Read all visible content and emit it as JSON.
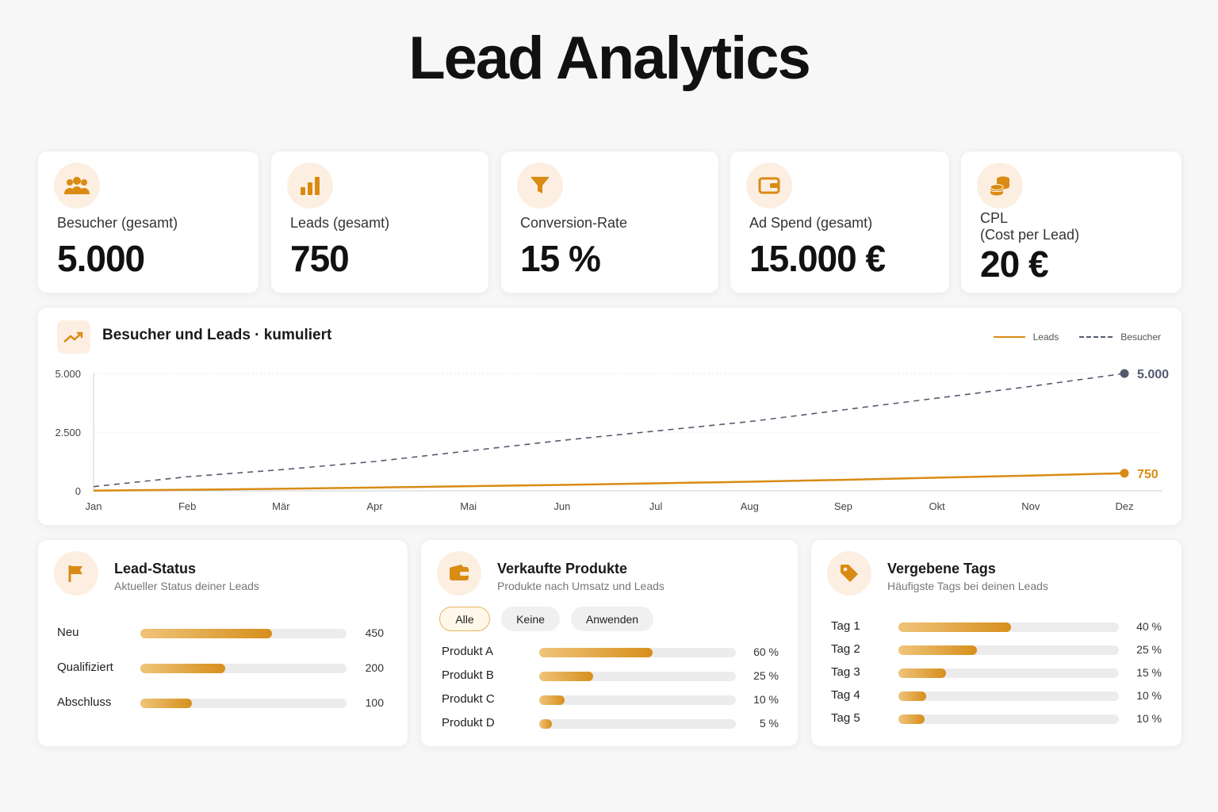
{
  "page": {
    "title": "Lead Analytics"
  },
  "colors": {
    "accent": "#d98b14",
    "accent_light": "#fcefe2",
    "secondary_line": "#555b6e"
  },
  "kpis": [
    {
      "icon": "users-icon",
      "label": "Besucher (gesamt)",
      "value": "5.000"
    },
    {
      "icon": "bar-chart-icon",
      "label": "Leads (gesamt)",
      "value": "750"
    },
    {
      "icon": "funnel-icon",
      "label": "Conversion-Rate",
      "value": "15 %"
    },
    {
      "icon": "wallet-icon",
      "label": "Ad Spend (gesamt)",
      "value": "15.000 €"
    },
    {
      "icon": "coins-icon",
      "label": "CPL",
      "sublabel": "(Cost per Lead)",
      "value": "20 €"
    }
  ],
  "chart_card": {
    "icon": "trending-up-icon",
    "title": "Besucher und Leads · kumuliert",
    "legend": [
      "Leads",
      "Besucher"
    ]
  },
  "chart_data": {
    "type": "line",
    "title": "Besucher und Leads · kumuliert",
    "categories": [
      "Jan",
      "Feb",
      "Mär",
      "Apr",
      "Mai",
      "Jun",
      "Jul",
      "Aug",
      "Sep",
      "Okt",
      "Nov",
      "Dez"
    ],
    "series": [
      {
        "name": "Leads",
        "style": "solid",
        "color": "#d98b14",
        "values": [
          10,
          45,
          90,
          140,
          200,
          255,
          320,
          390,
          470,
          560,
          650,
          750
        ]
      },
      {
        "name": "Besucher",
        "style": "dashed",
        "color": "#555b6e",
        "values": [
          180,
          600,
          900,
          1250,
          1700,
          2150,
          2550,
          2950,
          3450,
          3950,
          4450,
          5000
        ]
      }
    ],
    "end_labels": [
      "750",
      "5.000"
    ],
    "yticks": [
      0,
      2500,
      5000
    ],
    "ytick_labels": [
      "0",
      "2.500",
      "5.000"
    ],
    "ylim": [
      0,
      5000
    ],
    "grid": true,
    "legend_position": "top-right"
  },
  "lead_status": {
    "icon": "flag-icon",
    "title": "Lead-Status",
    "subtitle": "Aktueller Status deiner Leads",
    "rows": [
      {
        "label": "Neu",
        "value": "450",
        "fraction": 0.64
      },
      {
        "label": "Qualifiziert",
        "value": "200",
        "fraction": 0.41
      },
      {
        "label": "Abschluss",
        "value": "100",
        "fraction": 0.25
      }
    ]
  },
  "products": {
    "icon": "wallet-icon",
    "title": "Verkaufte Produkte",
    "subtitle": "Produkte nach Umsatz und Leads",
    "filters": [
      "Alle",
      "Keine",
      "Anwenden"
    ],
    "active_filter": "Alle",
    "rows": [
      {
        "label": "Produkt A",
        "value": "60 %",
        "fraction": 0.575
      },
      {
        "label": "Produkt B",
        "value": "25 %",
        "fraction": 0.275
      },
      {
        "label": "Produkt C",
        "value": "10 %",
        "fraction": 0.13
      },
      {
        "label": "Produkt D",
        "value": "5 %",
        "fraction": 0.065
      }
    ]
  },
  "tags": {
    "icon": "tag-icon",
    "title": "Vergebene Tags",
    "subtitle": "Häufigste Tags bei deinen Leads",
    "rows": [
      {
        "label": "Tag 1",
        "value": "40 %",
        "fraction": 0.51
      },
      {
        "label": "Tag 2",
        "value": "25 %",
        "fraction": 0.355
      },
      {
        "label": "Tag 3",
        "value": "15 %",
        "fraction": 0.215
      },
      {
        "label": "Tag 4",
        "value": "10 %",
        "fraction": 0.125
      },
      {
        "label": "Tag 5",
        "value": "10 %",
        "fraction": 0.12
      }
    ]
  }
}
